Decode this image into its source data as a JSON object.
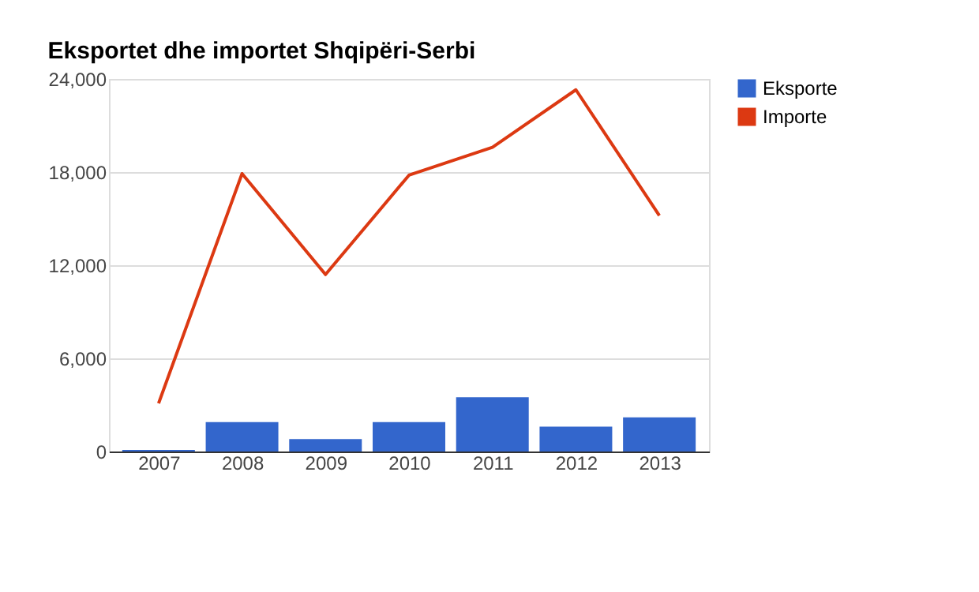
{
  "chart_data": {
    "type": "bar",
    "title": "Eksportet dhe importet Shqipëri-Serbi",
    "categories": [
      "2007",
      "2008",
      "2009",
      "2010",
      "2011",
      "2012",
      "2013"
    ],
    "series": [
      {
        "name": "Eksporte",
        "color": "#3366cc",
        "values": [
          100,
          1900,
          800,
          1900,
          3500,
          1600,
          2200
        ]
      },
      {
        "name": "Importe",
        "color": "#dc3912",
        "type": "line",
        "values": [
          3100,
          17900,
          11400,
          17800,
          19600,
          23300,
          15200
        ]
      }
    ],
    "ylim": [
      0,
      24000
    ],
    "yticks": [
      0,
      {
        "value": 6000,
        "label": "6,000"
      },
      {
        "value": 12000,
        "label": "12,000"
      },
      {
        "value": 18000,
        "label": "18,000"
      },
      {
        "value": 24000,
        "label": "24,000"
      }
    ],
    "grid": "y",
    "legend": "top right"
  }
}
